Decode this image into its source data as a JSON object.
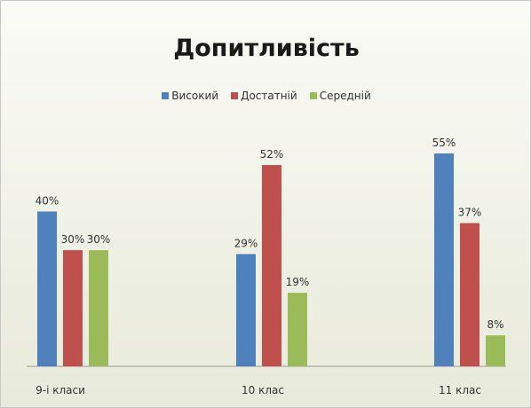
{
  "chart_data": {
    "type": "bar",
    "title": "Допитливість",
    "xlabel": "",
    "ylabel": "",
    "categories": [
      "9-і класи",
      "10 клас",
      "11 клас"
    ],
    "series": [
      {
        "name": "Високий",
        "color": "#4f81bd",
        "values": [
          40,
          29,
          55
        ]
      },
      {
        "name": "Достатній",
        "color": "#c0504d",
        "values": [
          30,
          52,
          37
        ]
      },
      {
        "name": "Середній",
        "color": "#9bbb59",
        "values": [
          30,
          19,
          8
        ]
      }
    ],
    "value_labels": [
      [
        "40%",
        "29%",
        "55%"
      ],
      [
        "30%",
        "52%",
        "37%"
      ],
      [
        "30%",
        "19%",
        "8%"
      ]
    ],
    "ylim": [
      0,
      60
    ],
    "legend_position": "top",
    "grid": false
  }
}
